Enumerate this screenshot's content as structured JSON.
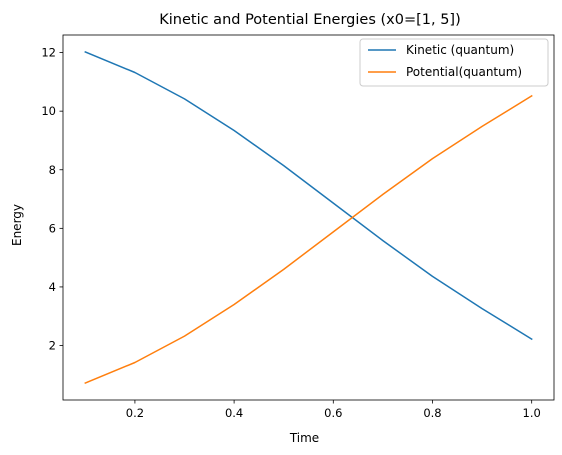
{
  "chart_data": {
    "type": "line",
    "title": "Kinetic and Potential Energies (x0=[1, 5])",
    "xlabel": "Time",
    "ylabel": "Energy",
    "xlim": [
      0.055,
      1.045
    ],
    "ylim": [
      0.14,
      12.6
    ],
    "xticks": [
      0.2,
      0.4,
      0.6,
      0.8,
      1.0
    ],
    "xtick_labels": [
      "0.2",
      "0.4",
      "0.6",
      "0.8",
      "1.0"
    ],
    "yticks": [
      2,
      4,
      6,
      8,
      10,
      12
    ],
    "ytick_labels": [
      "2",
      "4",
      "6",
      "8",
      "10",
      "12"
    ],
    "grid": false,
    "legend_position": "top-right",
    "x": [
      0.1,
      0.2,
      0.3,
      0.4,
      0.5,
      0.6,
      0.7,
      0.8,
      0.9,
      1.0
    ],
    "series": [
      {
        "name": "Kinetic (quantum)",
        "color": "#1f77b4",
        "values": [
          12.02,
          11.32,
          10.42,
          9.34,
          8.14,
          6.86,
          5.58,
          4.36,
          3.26,
          2.22
        ]
      },
      {
        "name": "Potential(quantum)",
        "color": "#ff7f0e",
        "values": [
          0.72,
          1.42,
          2.32,
          3.4,
          4.6,
          5.88,
          7.16,
          8.38,
          9.48,
          10.52
        ]
      }
    ]
  }
}
